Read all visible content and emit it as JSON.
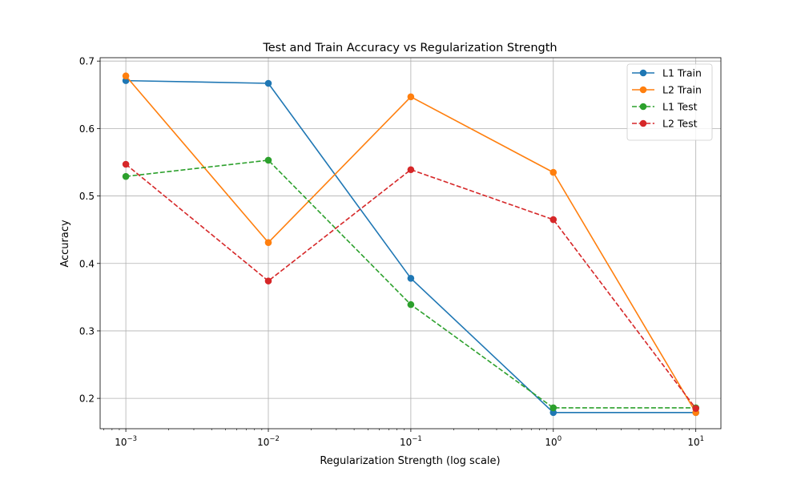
{
  "chart_data": {
    "type": "line",
    "title": "Test and Train Accuracy vs Regularization Strength",
    "xlabel": "Regularization Strength (log scale)",
    "ylabel": "Accuracy",
    "x_scale": "log",
    "x": [
      0.001,
      0.01,
      0.1,
      1,
      10
    ],
    "x_tick_labels": [
      {
        "base": "10",
        "exp": "−3"
      },
      {
        "base": "10",
        "exp": "−2"
      },
      {
        "base": "10",
        "exp": "−1"
      },
      {
        "base": "10",
        "exp": "0"
      },
      {
        "base": "10",
        "exp": "1"
      }
    ],
    "y_ticks": [
      0.2,
      0.3,
      0.4,
      0.5,
      0.6,
      0.7
    ],
    "y_tick_labels": [
      "0.2",
      "0.3",
      "0.4",
      "0.5",
      "0.6",
      "0.7"
    ],
    "xlim": [
      0.00066,
      15
    ],
    "ylim": [
      0.155,
      0.705
    ],
    "grid": true,
    "legend_position": "top-right",
    "series": [
      {
        "name": "L1 Train",
        "color": "#1f77b4",
        "linestyle": "solid",
        "marker": "circle",
        "values": [
          0.671,
          0.667,
          0.378,
          0.179,
          0.179
        ]
      },
      {
        "name": "L2 Train",
        "color": "#ff7f0e",
        "linestyle": "solid",
        "marker": "circle",
        "values": [
          0.678,
          0.431,
          0.647,
          0.535,
          0.179
        ]
      },
      {
        "name": "L1 Test",
        "color": "#2ca02c",
        "linestyle": "dashed",
        "marker": "circle",
        "values": [
          0.529,
          0.553,
          0.339,
          0.186,
          0.186
        ]
      },
      {
        "name": "L2 Test",
        "color": "#d62728",
        "linestyle": "dashed",
        "marker": "circle",
        "values": [
          0.547,
          0.374,
          0.539,
          0.465,
          0.185
        ]
      }
    ]
  }
}
